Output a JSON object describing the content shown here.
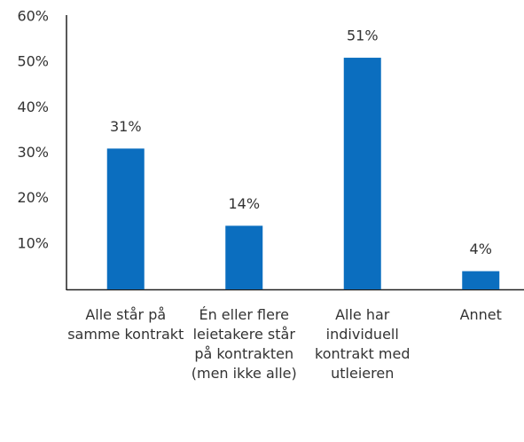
{
  "chart_data": {
    "type": "bar",
    "categories": [
      "Alle står på samme kontrakt",
      "Én eller flere leietakere står på kontrakten (men ikke alle)",
      "Alle har individuell kontrakt med utleieren",
      "Annet"
    ],
    "values": [
      31,
      14,
      51,
      4
    ],
    "value_labels": [
      "31%",
      "14%",
      "51%",
      "4%"
    ],
    "color": "#0b6ebf",
    "ylim": [
      0,
      60
    ],
    "yticks": [
      {
        "value": 10,
        "label": "10%"
      },
      {
        "value": 20,
        "label": "20%"
      },
      {
        "value": 30,
        "label": "30%"
      },
      {
        "value": 40,
        "label": "40%"
      },
      {
        "value": 50,
        "label": "50%"
      },
      {
        "value": 60,
        "label": "60%"
      }
    ],
    "grid": false
  }
}
